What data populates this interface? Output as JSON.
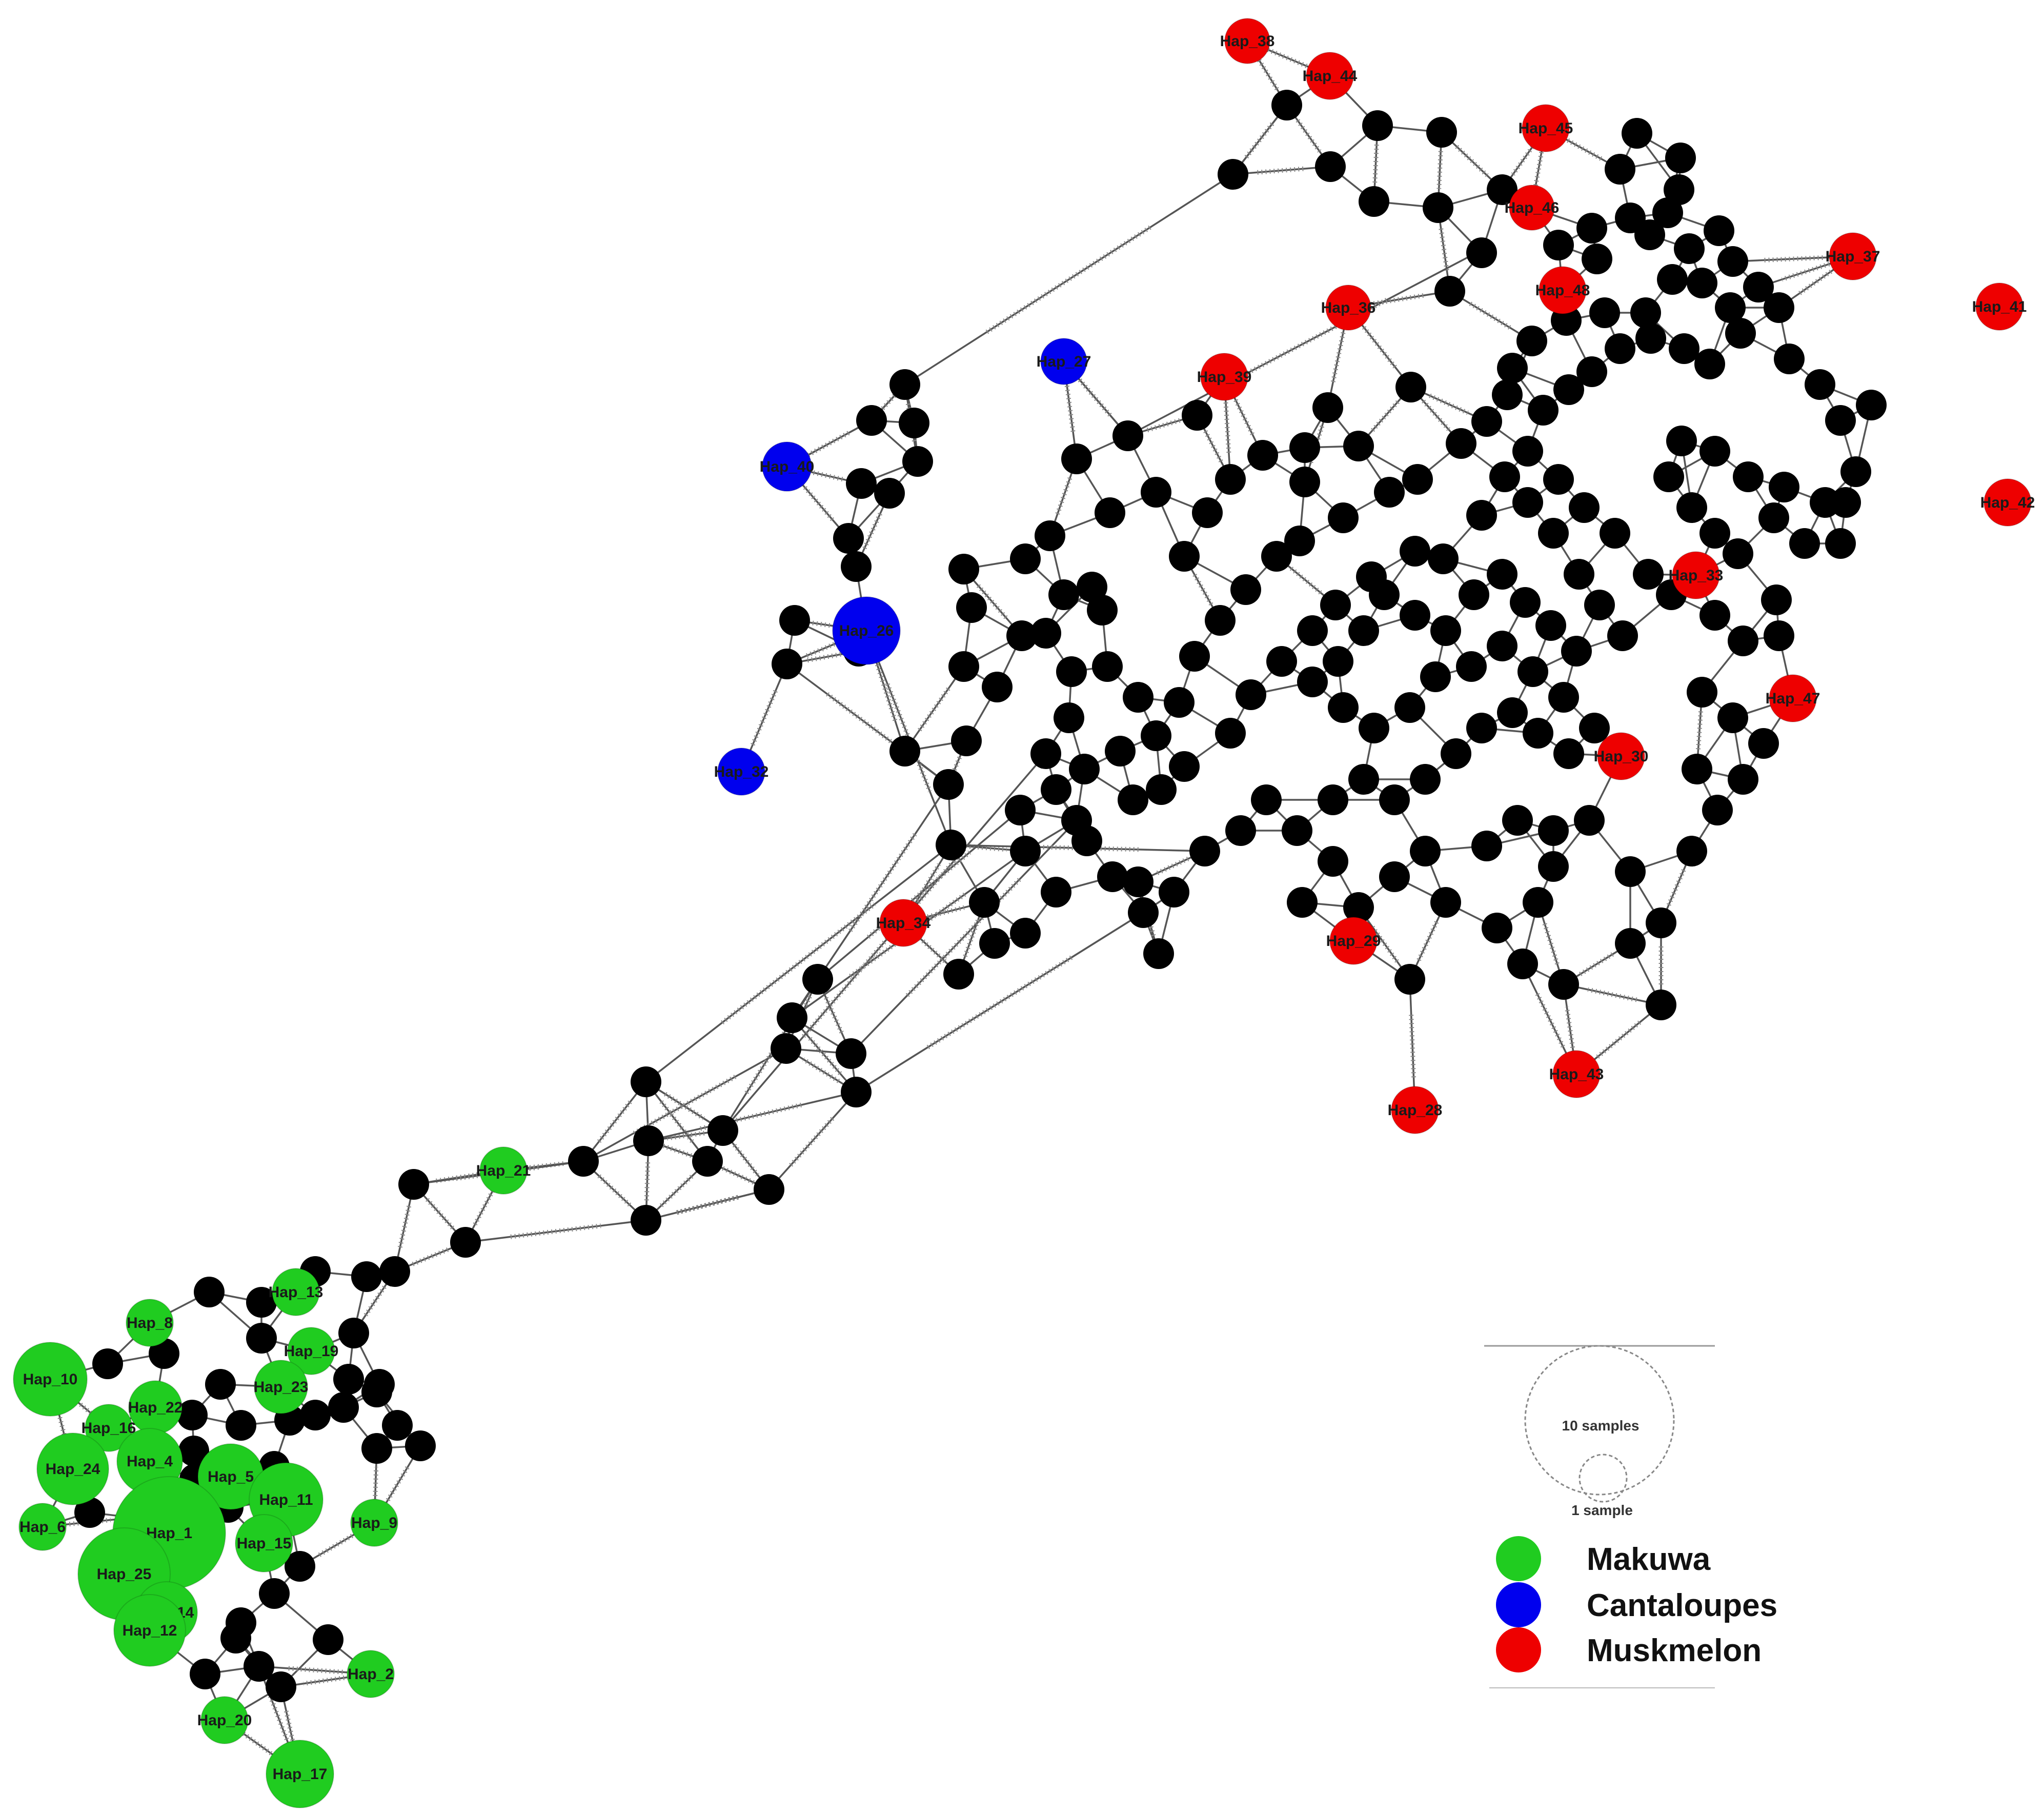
{
  "colors": {
    "makuwa": "#20cc20",
    "cantaloupes": "#0000ee",
    "muskmelon": "#ee0000",
    "median": "#000000"
  },
  "haplotypes": [
    {
      "id": "Hap_38",
      "group": "muskmelon"
    },
    {
      "id": "Hap_44",
      "group": "muskmelon"
    },
    {
      "id": "Hap_45",
      "group": "muskmelon"
    },
    {
      "id": "Hap_46",
      "group": "muskmelon"
    },
    {
      "id": "Hap_37",
      "group": "muskmelon"
    },
    {
      "id": "Hap_48",
      "group": "muskmelon"
    },
    {
      "id": "Hap_41",
      "group": "muskmelon"
    },
    {
      "id": "Hap_36",
      "group": "muskmelon"
    },
    {
      "id": "Hap_39",
      "group": "muskmelon"
    },
    {
      "id": "Hap_42",
      "group": "muskmelon"
    },
    {
      "id": "Hap_33",
      "group": "muskmelon"
    },
    {
      "id": "Hap_47",
      "group": "muskmelon"
    },
    {
      "id": "Hap_30",
      "group": "muskmelon"
    },
    {
      "id": "Hap_34",
      "group": "muskmelon"
    },
    {
      "id": "Hap_29",
      "group": "muskmelon"
    },
    {
      "id": "Hap_43",
      "group": "muskmelon"
    },
    {
      "id": "Hap_28",
      "group": "muskmelon"
    },
    {
      "id": "Hap_27",
      "group": "cantaloupes"
    },
    {
      "id": "Hap_40",
      "group": "cantaloupes"
    },
    {
      "id": "Hap_26",
      "group": "cantaloupes"
    },
    {
      "id": "Hap_32",
      "group": "cantaloupes"
    },
    {
      "id": "Hap_21",
      "group": "makuwa"
    },
    {
      "id": "Hap_13",
      "group": "makuwa"
    },
    {
      "id": "Hap_8",
      "group": "makuwa"
    },
    {
      "id": "Hap_19",
      "group": "makuwa"
    },
    {
      "id": "Hap_10",
      "group": "makuwa"
    },
    {
      "id": "Hap_23",
      "group": "makuwa"
    },
    {
      "id": "Hap_22",
      "group": "makuwa"
    },
    {
      "id": "Hap_16",
      "group": "makuwa"
    },
    {
      "id": "Hap_4",
      "group": "makuwa"
    },
    {
      "id": "Hap_24",
      "group": "makuwa"
    },
    {
      "id": "Hap_5",
      "group": "makuwa"
    },
    {
      "id": "Hap_11",
      "group": "makuwa"
    },
    {
      "id": "Hap_1",
      "group": "makuwa"
    },
    {
      "id": "Hap_6",
      "group": "makuwa"
    },
    {
      "id": "Hap_9",
      "group": "makuwa"
    },
    {
      "id": "Hap_15",
      "group": "makuwa"
    },
    {
      "id": "Hap_25",
      "group": "makuwa"
    },
    {
      "id": "Hap_14",
      "group": "makuwa"
    },
    {
      "id": "Hap_12",
      "group": "makuwa"
    },
    {
      "id": "Hap_2",
      "group": "makuwa"
    },
    {
      "id": "Hap_20",
      "group": "makuwa"
    },
    {
      "id": "Hap_17",
      "group": "makuwa"
    }
  ],
  "legend": {
    "size_scale": {
      "large": "10 samples",
      "small": "1 sample"
    },
    "groups": [
      {
        "key": "makuwa",
        "label": "Makuwa"
      },
      {
        "key": "cantaloupes",
        "label": "Cantaloupes"
      },
      {
        "key": "muskmelon",
        "label": "Muskmelon"
      }
    ]
  }
}
